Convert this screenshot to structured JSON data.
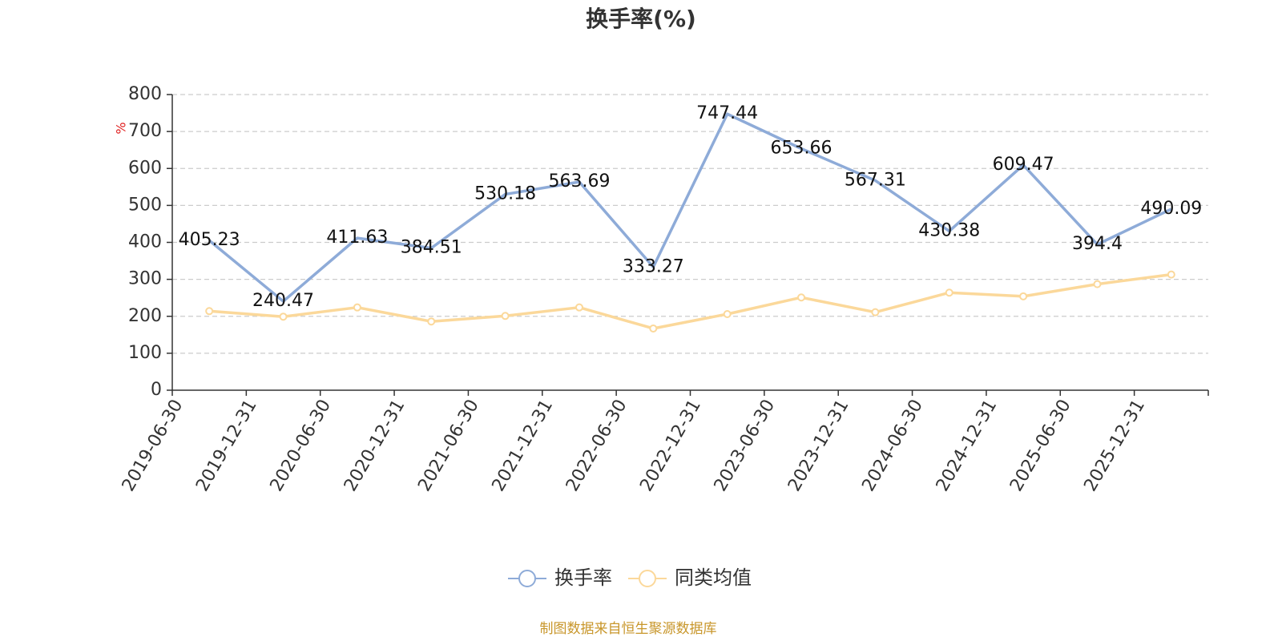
{
  "chart_data": {
    "type": "line",
    "title": "换手率(%)",
    "ylabel": "%",
    "ylim": [
      0,
      800
    ],
    "yticks": [
      0,
      100,
      200,
      300,
      400,
      500,
      600,
      700,
      800
    ],
    "grid": true,
    "legend_position": "bottom",
    "categories": [
      "2019-06-30",
      "2019-12-31",
      "2020-06-30",
      "2020-12-31",
      "2021-06-30",
      "2021-12-31",
      "2022-06-30",
      "2022-12-31",
      "2023-06-30",
      "2023-12-31",
      "2024-06-30",
      "2024-12-31",
      "2025-06-30",
      "2025-12-31"
    ],
    "series": [
      {
        "name": "换手率",
        "color": "#8eabd8",
        "show_labels": true,
        "values": [
          405.23,
          240.47,
          411.63,
          384.51,
          530.18,
          563.69,
          333.27,
          747.44,
          653.66,
          567.31,
          430.38,
          609.47,
          394.4,
          490.09
        ],
        "labels": [
          "405.23",
          "240.47",
          "411.63",
          "384.51",
          "530.18",
          "563.69",
          "333.27",
          "747.44",
          "653.66",
          "567.31",
          "430.38",
          "609.47",
          "394.4",
          "490.09"
        ]
      },
      {
        "name": "同类均值",
        "color": "#fbd89a",
        "show_labels": false,
        "values": [
          214,
          199,
          224,
          186,
          201,
          224,
          167,
          206,
          251,
          211,
          264,
          254,
          287,
          313
        ]
      }
    ]
  },
  "source_text": "制图数据来自恒生聚源数据库"
}
